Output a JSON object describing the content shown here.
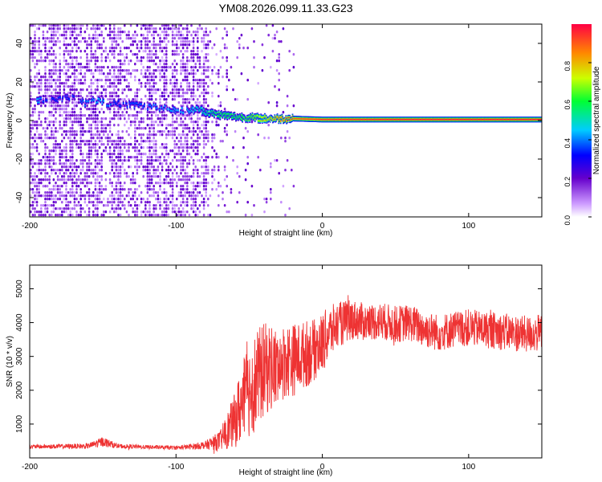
{
  "figure": {
    "title": "YM08.2026.099.11.33.G23"
  },
  "chart_data": [
    {
      "type": "heatmap",
      "name": "spectrogram",
      "title": "YM08.2026.099.11.33.G23",
      "xlabel": "Height of straight line (km)",
      "ylabel": "Frequency (Hz)",
      "xlim": [
        -200,
        150
      ],
      "ylim": [
        -50,
        50
      ],
      "x_ticks": [
        -200,
        -100,
        0,
        100
      ],
      "y_ticks": [
        -40,
        -20,
        0,
        20,
        40
      ],
      "colorbar": {
        "label": "Normalized spectral amplitude",
        "range": [
          0,
          1
        ],
        "ticks": [
          0.0,
          0.2,
          0.4,
          0.6,
          0.8
        ]
      },
      "signal_track": [
        {
          "x": -195,
          "freq": 10,
          "amp": 0.45
        },
        {
          "x": -190,
          "freq": 11,
          "amp": 0.35
        },
        {
          "x": -168,
          "freq": 12,
          "amp": 0.35
        },
        {
          "x": -163,
          "freq": 9,
          "amp": 0.4
        },
        {
          "x": -152,
          "freq": 11,
          "amp": 0.45
        },
        {
          "x": -146,
          "freq": 8,
          "amp": 0.4
        },
        {
          "x": -140,
          "freq": 9,
          "amp": 0.35
        },
        {
          "x": -92,
          "freq": 5,
          "amp": 0.45
        },
        {
          "x": -85,
          "freq": 6,
          "amp": 0.5
        },
        {
          "x": -78,
          "freq": 4,
          "amp": 0.55
        },
        {
          "x": -70,
          "freq": 3,
          "amp": 0.6
        },
        {
          "x": -60,
          "freq": 2,
          "amp": 0.6
        },
        {
          "x": -50,
          "freq": 1.5,
          "amp": 0.65
        },
        {
          "x": -40,
          "freq": 1,
          "amp": 0.75
        },
        {
          "x": -30,
          "freq": 1,
          "amp": 0.85
        },
        {
          "x": -20,
          "freq": 1,
          "amp": 0.9
        },
        {
          "x": 0,
          "freq": 0.5,
          "amp": 0.95
        },
        {
          "x": 50,
          "freq": 0.5,
          "amp": 0.97
        },
        {
          "x": 100,
          "freq": 0.5,
          "amp": 0.97
        },
        {
          "x": 150,
          "freq": 0.5,
          "amp": 0.97
        }
      ]
    },
    {
      "type": "line",
      "name": "snr",
      "xlabel": "Height of straight line (km)",
      "ylabel": "SNR (10 * v/v)",
      "xlim": [
        -200,
        150
      ],
      "ylim": [
        0,
        5700
      ],
      "x_ticks": [
        -200,
        -100,
        0,
        100
      ],
      "y_ticks": [
        1000,
        2000,
        3000,
        4000,
        5000
      ],
      "series": [
        {
          "name": "SNR",
          "color": "#ee3333",
          "x": [
            -200,
            -180,
            -160,
            -150,
            -140,
            -120,
            -100,
            -90,
            -80,
            -70,
            -60,
            -55,
            -50,
            -45,
            -40,
            -35,
            -30,
            -25,
            -20,
            -15,
            -10,
            -5,
            0,
            5,
            10,
            15,
            20,
            30,
            40,
            50,
            60,
            70,
            80,
            90,
            100,
            110,
            120,
            130,
            140,
            150
          ],
          "mean": [
            330,
            340,
            350,
            480,
            350,
            320,
            300,
            330,
            380,
            500,
            1100,
            1600,
            2000,
            2300,
            2600,
            2700,
            2600,
            2900,
            2900,
            3000,
            3100,
            3200,
            3400,
            3700,
            3900,
            4000,
            4100,
            4000,
            4050,
            3950,
            4000,
            3800,
            3700,
            3800,
            3850,
            3800,
            3750,
            3700,
            3650,
            3700
          ],
          "spread": [
            60,
            70,
            80,
            150,
            70,
            60,
            60,
            80,
            120,
            300,
            800,
            1200,
            1400,
            1500,
            1400,
            1300,
            1200,
            1100,
            1100,
            1000,
            1000,
            900,
            900,
            800,
            700,
            650,
            600,
            550,
            550,
            550,
            550,
            550,
            550,
            550,
            550,
            550,
            550,
            550,
            550,
            550
          ]
        }
      ]
    }
  ]
}
